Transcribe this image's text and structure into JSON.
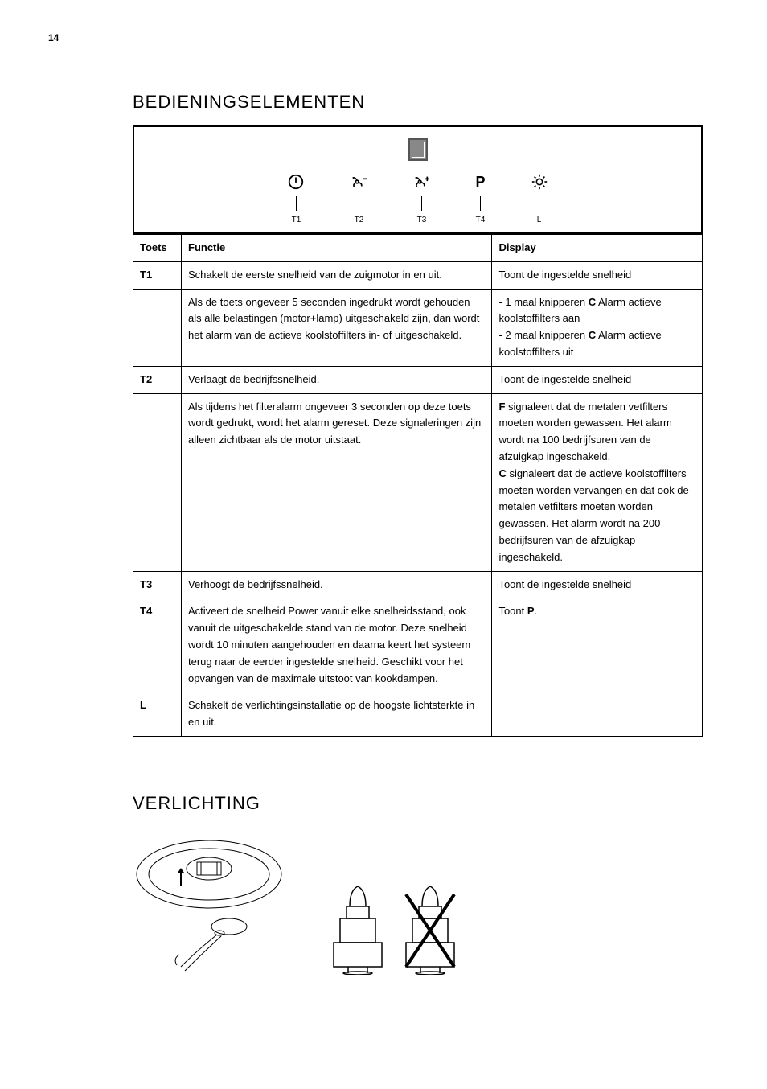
{
  "page_number": "14",
  "section1_title": "BEDIENINGSELEMENTEN",
  "section2_title": "VERLICHTING",
  "control_buttons": [
    {
      "label": "T1"
    },
    {
      "label": "T2"
    },
    {
      "label": "T3"
    },
    {
      "label": "T4",
      "text": "P"
    },
    {
      "label": "L"
    }
  ],
  "table": {
    "headers": {
      "toets": "Toets",
      "functie": "Functie",
      "display": "Display"
    },
    "rows": [
      {
        "toets": "T1",
        "functie": "Schakelt de eerste snelheid van de zuigmotor in en uit.",
        "display": "Toont de ingestelde snelheid"
      },
      {
        "toets": "",
        "functie": "Als de toets ongeveer 5 seconden ingedrukt wordt gehouden als alle belastingen (motor+lamp) uitgeschakeld zijn, dan wordt het alarm van de actieve koolstoffilters in- of uitgeschakeld.",
        "display_html": "- 1 maal knipperen <b>C</b> Alarm actieve koolstoffilters aan<br>- 2 maal knipperen <b>C</b> Alarm actieve koolstoffilters uit"
      },
      {
        "toets": "T2",
        "functie": "Verlaagt de bedrijfssnelheid.",
        "display": "Toont de ingestelde snelheid"
      },
      {
        "toets": "",
        "functie": "Als tijdens het filteralarm ongeveer 3 seconden op deze toets wordt gedrukt, wordt het alarm gereset. Deze signaleringen zijn alleen zichtbaar als de motor uitstaat.",
        "display_html": "<b>F</b> signaleert dat de metalen vetfilters moeten worden gewassen. Het alarm wordt na 100 bedrijfsuren van de afzuigkap ingeschakeld.<br><b>C</b> signaleert dat de actieve koolstoffilters moeten worden vervangen en dat ook de metalen vetfilters moeten worden gewassen. Het alarm wordt na 200 bedrijfsuren van de afzuigkap ingeschakeld."
      },
      {
        "toets": "T3",
        "functie": "Verhoogt de bedrijfssnelheid.",
        "display": "Toont de ingestelde snelheid"
      },
      {
        "toets": "T4",
        "functie": "Activeert de snelheid Power vanuit elke snelheidsstand, ook vanuit de uitgeschakelde stand van de motor. Deze snelheid wordt 10 minuten aangehouden en daarna keert het systeem terug naar de eerder ingestelde snelheid. Geschikt voor het opvangen van de maximale uitstoot van kookdampen.",
        "display_html": "Toont <b>P</b>."
      },
      {
        "toets": "L",
        "functie": "Schakelt de verlichtingsinstallatie op de hoogste lichtsterkte in en uit.",
        "display": ""
      }
    ]
  }
}
